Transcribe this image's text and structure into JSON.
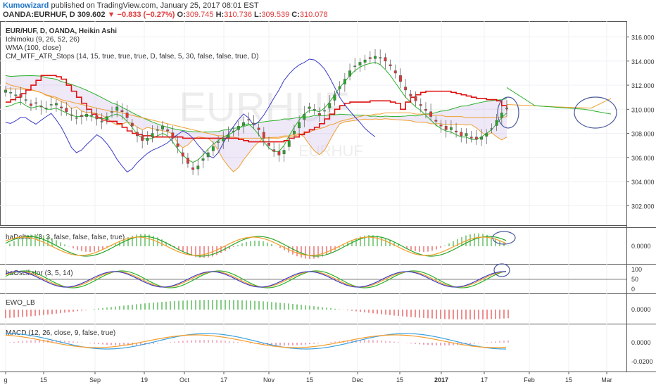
{
  "header": {
    "author": "Kumowizard",
    "published_text": "published on TradingView.com, January 25, 2017 08:01 EST",
    "symbol": "OANDA:EURHUF,",
    "period": "D",
    "price": "309.602",
    "change": "▼ −0.833 (−0.27%)",
    "o_label": "O:",
    "o_value": "309.745",
    "h_label": "H:",
    "h_value": "310.736",
    "l_label": "L:",
    "l_value": "309.539",
    "c_label": "C:",
    "c_value": "310.078"
  },
  "watermark": {
    "big": "EURHUF",
    "small": "EURHUF"
  },
  "colors": {
    "bull": "#26a626",
    "bear": "#e03636",
    "kumo": "#c9b8e6",
    "atr": "#e01010",
    "wma": "#f0a030",
    "blue": "#3b3bc8",
    "green": "#2bb12b",
    "orange": "#f59c2a",
    "macd": "#3aa0e0",
    "circle": "#4a5a9a"
  },
  "chart_data": [
    {
      "type": "candlestick",
      "title": "EUR/HUF, D, OANDA, Heikin Ashi",
      "indicators": [
        "Ichimoku (9, 26, 52, 26)",
        "WMA (100, close)",
        "CM_MTF_ATR_Stops (14, 15, true, true, true, D, false, 5, 30, false, false, true, D)"
      ],
      "y_ticks": [
        "302.000",
        "304.000",
        "306.000",
        "308.000",
        "310.000",
        "312.000",
        "314.000",
        "316.000"
      ],
      "ylim": [
        300.5,
        317.2
      ],
      "x_ticks": [
        "g",
        "15",
        "Sep",
        "19",
        "Oct",
        "17",
        "Nov",
        "15",
        "Dec",
        "15",
        "2017",
        "17",
        "Feb",
        "15",
        "Mar"
      ],
      "close": [
        311.6,
        311.4,
        311.2,
        311.0,
        310.8,
        310.3,
        310.5,
        310.2,
        310.1,
        310.4,
        310.5,
        310.1,
        309.8,
        309.5,
        309.3,
        309.4,
        309.6,
        309.5,
        309.2,
        309.0,
        309.4,
        309.8,
        310.2,
        309.8,
        309.3,
        308.6,
        307.8,
        307.4,
        307.6,
        308.0,
        308.3,
        308.6,
        308.2,
        307.6,
        306.9,
        306.1,
        305.5,
        305.0,
        305.3,
        305.9,
        306.4,
        306.9,
        307.3,
        307.6,
        307.9,
        308.2,
        308.6,
        308.9,
        309.1,
        308.8,
        308.3,
        307.6,
        307.0,
        306.5,
        306.2,
        306.6,
        307.4,
        308.2,
        308.9,
        309.6,
        310.2,
        310.0,
        309.5,
        309.9,
        310.5,
        311.2,
        311.9,
        312.5,
        313.2,
        313.6,
        313.9,
        314.1,
        314.2,
        314.4,
        314.3,
        314.0,
        313.6,
        313.0,
        312.3,
        311.6,
        311.1,
        310.7,
        310.3,
        309.9,
        309.4,
        309.0,
        308.6,
        308.3,
        308.5,
        308.1,
        307.8,
        308.0,
        307.6,
        307.5,
        307.7,
        308.0,
        308.4,
        309.1,
        309.7,
        310.1
      ],
      "atr_stop": [
        310.6,
        310.8,
        311.0,
        311.3,
        311.6,
        312.0,
        312.4,
        312.8,
        312.8,
        312.8,
        312.7,
        312.5,
        312.0,
        311.5,
        311.0,
        310.5,
        310.0,
        309.6,
        309.3,
        309.1,
        309.0,
        309.0,
        308.8,
        308.5,
        308.2,
        308.0,
        307.9,
        307.8,
        307.8,
        307.7,
        307.7,
        307.7,
        307.7,
        307.7,
        307.7,
        307.6,
        307.6,
        307.6,
        307.6,
        307.6,
        307.6,
        307.6,
        307.6,
        307.6,
        307.6,
        307.6,
        307.5,
        307.4,
        307.3,
        307.3,
        307.3,
        307.3,
        307.3,
        307.3,
        307.3,
        307.4,
        307.6,
        307.7,
        307.9,
        308.1,
        308.3,
        308.5,
        308.8,
        309.2,
        309.6,
        310.0,
        310.3,
        310.5,
        310.6,
        310.6,
        310.6,
        310.6,
        310.7,
        310.7,
        310.7,
        310.7,
        310.6,
        310.5,
        310.0,
        310.6,
        311.0,
        311.2,
        311.4,
        311.5,
        311.5,
        311.5,
        311.5,
        311.5,
        311.4,
        311.3,
        311.2,
        311.1,
        311.0,
        310.9,
        310.9,
        310.8,
        310.8,
        310.7,
        310.3,
        309.9
      ],
      "ichimoku_conversion": [
        310.2,
        310.3,
        310.5,
        310.6,
        310.3,
        310.1,
        310.2,
        310.3,
        310.0,
        310.0,
        310.1,
        309.9,
        309.7,
        309.5,
        309.4,
        309.4,
        309.5,
        309.4,
        309.3,
        309.2,
        309.3,
        309.5,
        309.6,
        309.4,
        309.0,
        308.5,
        307.9,
        307.6,
        307.5,
        307.6,
        307.8,
        308.0,
        307.8,
        307.3,
        306.7,
        306.2,
        305.8,
        305.6,
        305.8,
        306.2,
        306.7,
        307.1,
        307.4,
        307.7,
        307.9,
        308.1,
        308.4,
        308.7,
        308.8,
        308.4,
        307.9,
        307.3,
        306.8,
        306.5,
        306.5,
        307.0,
        307.8,
        308.5,
        309.1,
        309.6,
        309.9,
        309.9,
        309.8,
        310.1,
        310.6,
        311.2,
        311.8,
        312.3,
        312.8,
        313.2,
        313.5,
        313.7,
        313.8,
        313.9,
        313.7,
        313.3,
        312.8,
        312.2,
        311.6,
        311.0,
        310.6,
        310.2,
        309.9,
        309.5,
        309.1,
        308.7,
        308.4,
        308.2,
        308.1,
        307.9,
        307.7,
        307.7,
        307.5,
        307.5,
        307.7,
        308.0,
        308.3,
        308.8,
        309.3,
        309.7
      ],
      "wma": [
        312.2,
        312.0,
        311.9,
        311.8,
        311.7,
        311.6,
        311.5,
        311.4,
        311.2,
        311.1,
        311.0,
        310.8,
        310.7,
        310.6,
        310.5,
        310.4,
        310.3,
        310.2,
        310.1,
        310.0,
        309.9,
        309.8,
        309.8,
        309.7,
        309.6,
        309.5,
        309.4,
        309.3,
        309.2,
        309.1,
        309.0,
        308.9,
        308.8,
        308.7,
        308.6,
        308.5,
        308.4,
        308.3,
        308.2,
        308.1,
        308.0,
        307.9,
        307.8,
        307.8,
        307.7,
        307.7,
        307.6,
        307.6,
        307.6,
        307.6,
        307.6,
        307.6,
        307.6,
        307.6,
        307.6,
        307.7,
        307.7,
        307.8,
        307.9,
        308.0,
        308.1,
        308.3,
        308.4,
        308.5,
        308.7,
        308.8,
        309.0,
        309.1,
        309.2,
        309.3,
        309.4,
        309.5,
        309.5,
        309.6,
        309.6,
        309.7,
        309.7,
        309.7,
        309.7,
        309.7,
        309.7,
        309.6,
        309.6,
        309.6,
        309.5,
        309.5,
        309.5,
        309.4,
        309.4,
        309.4,
        309.4,
        309.3,
        309.3,
        309.3,
        309.3,
        309.3,
        309.3,
        309.3,
        309.3,
        309.4
      ]
    },
    {
      "type": "bar",
      "title": "haDelta+ (3, 3, false, false, false, true)",
      "y_ticks": [
        "0.0000"
      ]
    },
    {
      "type": "line",
      "title": "haOscillator (3, 5, 14)",
      "y_ticks": [
        "100",
        "50",
        "0"
      ]
    },
    {
      "type": "bar",
      "title": "EWO_LB",
      "y_ticks": [
        "0.0000"
      ]
    },
    {
      "type": "line",
      "title": "MACD (12, 26, close, 9, false, true)",
      "y_ticks": [
        "0.0000",
        "-0.0200"
      ]
    }
  ]
}
